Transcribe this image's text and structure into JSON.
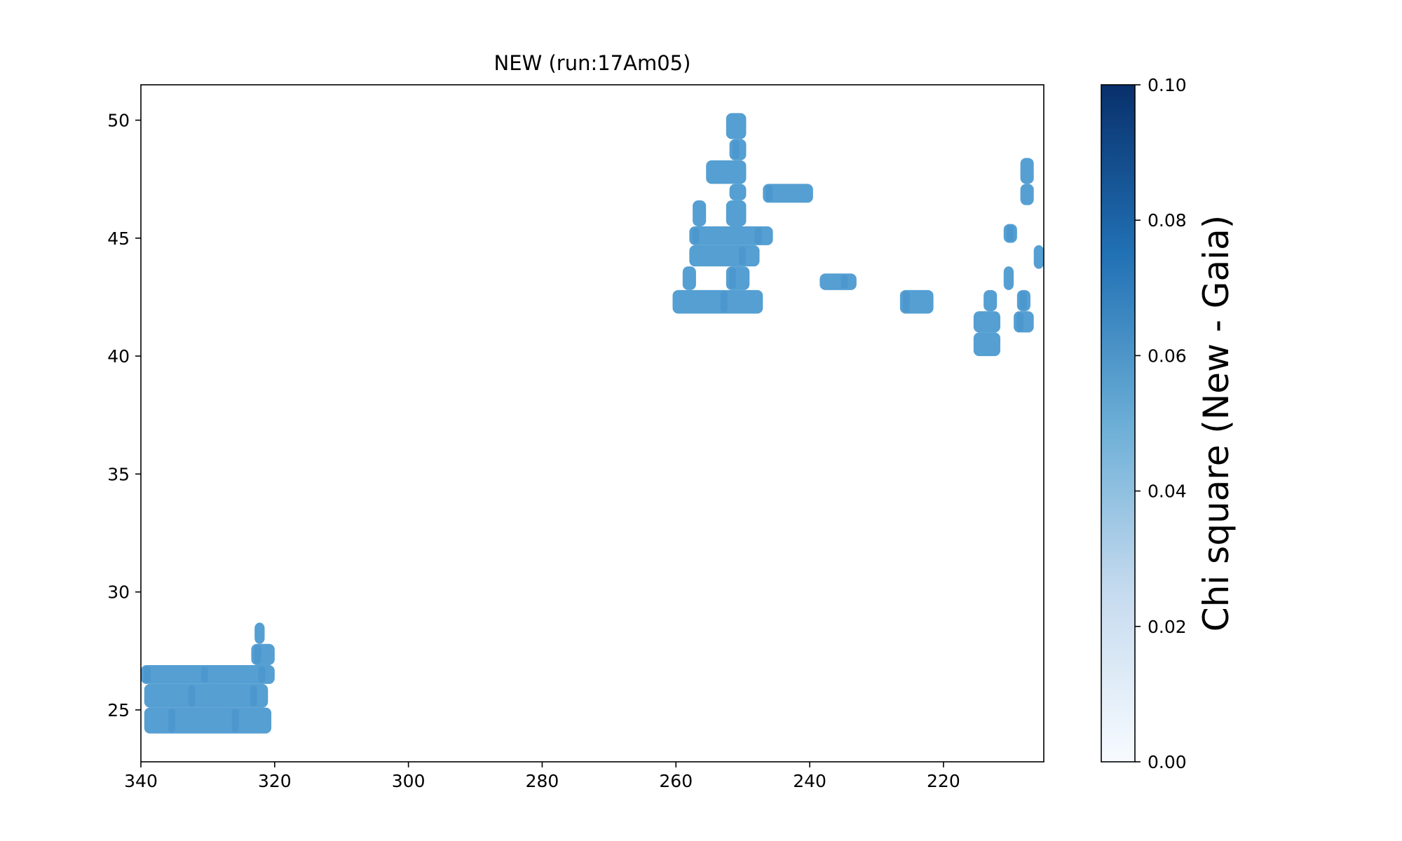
{
  "chart_data": {
    "type": "scatter",
    "title": "NEW (run:17Am05)",
    "xlabel": "",
    "ylabel": "",
    "x_inverted": true,
    "xlim": [
      340,
      205
    ],
    "ylim": [
      22.8,
      51.5
    ],
    "x_ticks": [
      340,
      320,
      300,
      280,
      260,
      240,
      220
    ],
    "y_ticks": [
      25,
      30,
      35,
      40,
      45,
      50
    ],
    "grid": false,
    "legend": "none",
    "point_color": "#559fd2",
    "point_color_dark": "#4691cb",
    "colorbar": {
      "label": "Chi square (New - Gaia)",
      "range": [
        0.0,
        0.1
      ],
      "ticks": [
        "0.00",
        "0.02",
        "0.04",
        "0.06",
        "0.08",
        "0.10"
      ],
      "colormap": "Blues",
      "colors": [
        "#f7fbff",
        "#c6dbef",
        "#6baed6",
        "#2171b5",
        "#08306b"
      ]
    },
    "regions": [
      {
        "x": [
          320,
          340
        ],
        "y": [
          26.1,
          26.9
        ],
        "value": 0.058
      },
      {
        "x": [
          321,
          339.5
        ],
        "y": [
          25.1,
          26.1
        ],
        "value": 0.058
      },
      {
        "x": [
          320.5,
          339.5
        ],
        "y": [
          24.0,
          25.1
        ],
        "value": 0.058
      },
      {
        "x": [
          320,
          323.5
        ],
        "y": [
          26.9,
          27.8
        ],
        "value": 0.058
      },
      {
        "x": [
          321.5,
          323
        ],
        "y": [
          27.8,
          28.7
        ],
        "value": 0.058
      },
      {
        "x": [
          249.5,
          252.5
        ],
        "y": [
          49.2,
          50.3
        ],
        "value": 0.058
      },
      {
        "x": [
          249.5,
          252
        ],
        "y": [
          48.3,
          49.2
        ],
        "value": 0.058
      },
      {
        "x": [
          249.5,
          255.5
        ],
        "y": [
          47.3,
          48.3
        ],
        "value": 0.058
      },
      {
        "x": [
          249.5,
          252
        ],
        "y": [
          46.6,
          47.3
        ],
        "value": 0.058
      },
      {
        "x": [
          239.5,
          247
        ],
        "y": [
          46.5,
          47.3
        ],
        "value": 0.058
      },
      {
        "x": [
          255.5,
          257.5
        ],
        "y": [
          45.5,
          46.6
        ],
        "value": 0.058
      },
      {
        "x": [
          249.5,
          252.5
        ],
        "y": [
          45.5,
          46.6
        ],
        "value": 0.058
      },
      {
        "x": [
          245.5,
          258
        ],
        "y": [
          44.7,
          45.5
        ],
        "value": 0.058
      },
      {
        "x": [
          247.5,
          258
        ],
        "y": [
          43.8,
          44.7
        ],
        "value": 0.058
      },
      {
        "x": [
          257,
          259
        ],
        "y": [
          42.8,
          43.8
        ],
        "value": 0.058
      },
      {
        "x": [
          249,
          252.5
        ],
        "y": [
          42.8,
          43.8
        ],
        "value": 0.058
      },
      {
        "x": [
          247,
          260.5
        ],
        "y": [
          41.8,
          42.8
        ],
        "value": 0.058
      },
      {
        "x": [
          233,
          238.5
        ],
        "y": [
          42.8,
          43.5
        ],
        "value": 0.058
      },
      {
        "x": [
          221.5,
          226.5
        ],
        "y": [
          41.8,
          42.8
        ],
        "value": 0.058
      },
      {
        "x": [
          206.5,
          208.5
        ],
        "y": [
          47.3,
          48.4
        ],
        "value": 0.058
      },
      {
        "x": [
          206.5,
          208.5
        ],
        "y": [
          46.4,
          47.3
        ],
        "value": 0.058
      },
      {
        "x": [
          209,
          211
        ],
        "y": [
          44.8,
          45.6
        ],
        "value": 0.058
      },
      {
        "x": [
          205,
          206.5
        ],
        "y": [
          43.7,
          44.7
        ],
        "value": 0.058
      },
      {
        "x": [
          209.5,
          211
        ],
        "y": [
          42.8,
          43.8
        ],
        "value": 0.058
      },
      {
        "x": [
          207,
          209
        ],
        "y": [
          41.9,
          42.8
        ],
        "value": 0.058
      },
      {
        "x": [
          212,
          214
        ],
        "y": [
          41.9,
          42.8
        ],
        "value": 0.058
      },
      {
        "x": [
          211.5,
          215.5
        ],
        "y": [
          41.0,
          41.9
        ],
        "value": 0.058
      },
      {
        "x": [
          206.5,
          209.5
        ],
        "y": [
          41.0,
          41.9
        ],
        "value": 0.058
      },
      {
        "x": [
          211.5,
          215.5
        ],
        "y": [
          40.0,
          41.0
        ],
        "value": 0.058
      }
    ]
  }
}
